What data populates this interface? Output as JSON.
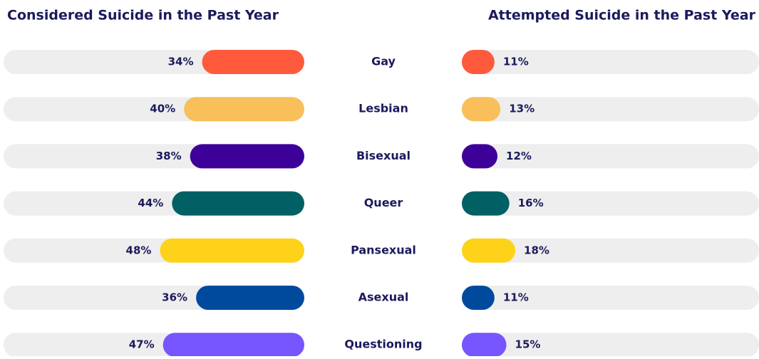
{
  "chart_data": [
    {
      "type": "bar",
      "title": "Considered Suicide in the Past Year",
      "categories": [
        "Gay",
        "Lesbian",
        "Bisexual",
        "Queer",
        "Pansexual",
        "Asexual",
        "Questioning"
      ],
      "values": [
        34,
        40,
        38,
        44,
        48,
        36,
        47
      ],
      "value_labels": [
        "34%",
        "40%",
        "38%",
        "44%",
        "48%",
        "36%",
        "47%"
      ],
      "colors": [
        "#ff5a3c",
        "#f8bf5a",
        "#3d0099",
        "#006064",
        "#ffd21a",
        "#004a9e",
        "#7755ff"
      ],
      "xlim": [
        0,
        100
      ]
    },
    {
      "type": "bar",
      "title": "Attempted Suicide in the Past Year",
      "values": [
        11,
        13,
        12,
        16,
        18,
        11,
        15
      ],
      "value_labels": [
        "11%",
        "13%",
        "12%",
        "16%",
        "18%",
        "11%",
        "15%"
      ],
      "colors": [
        "#ff5a3c",
        "#f8bf5a",
        "#3d0099",
        "#006064",
        "#ffd21a",
        "#004a9e",
        "#7755ff"
      ],
      "xlim": [
        0,
        100
      ]
    }
  ]
}
